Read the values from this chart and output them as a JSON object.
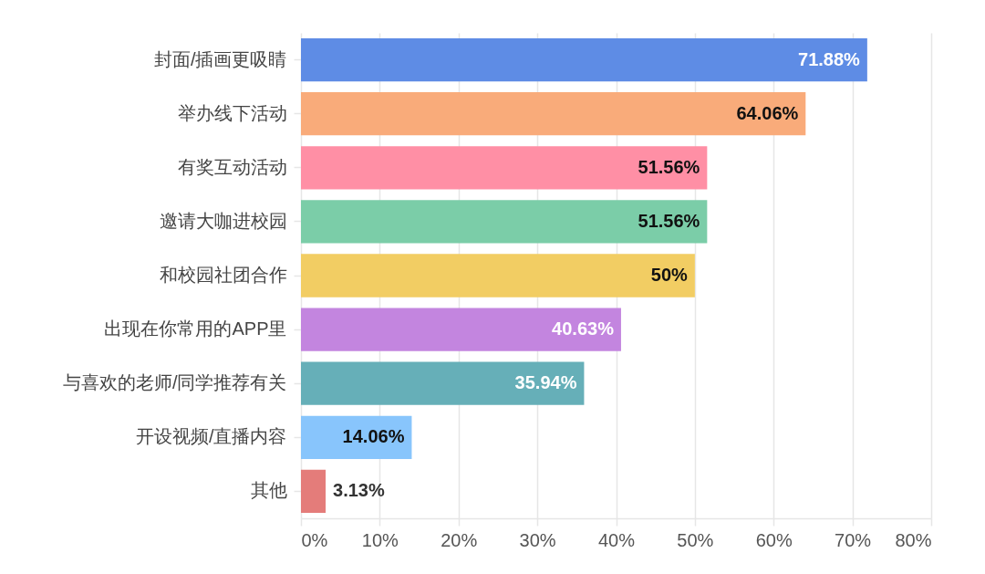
{
  "chart_data": {
    "type": "bar",
    "orientation": "horizontal",
    "categories": [
      "封面/插画更吸睛",
      "举办线下活动",
      "有奖互动活动",
      "邀请大咖进校园",
      "和校园社团合作",
      "出现在你常用的APP里",
      "与喜欢的老师/同学推荐有关",
      "开设视频/直播内容",
      "其他"
    ],
    "values": [
      71.88,
      64.06,
      51.56,
      51.56,
      50,
      40.63,
      35.94,
      14.06,
      3.13
    ],
    "value_labels": [
      "71.88%",
      "64.06%",
      "51.56%",
      "51.56%",
      "50%",
      "40.63%",
      "35.94%",
      "14.06%",
      "3.13%"
    ],
    "colors": [
      "#5e8ce5",
      "#f9ab7a",
      "#ff8fa5",
      "#7bcda8",
      "#f2cd63",
      "#c385df",
      "#66afb8",
      "#88c5fc",
      "#e47c7a"
    ],
    "xlim": [
      0,
      80
    ],
    "xticks": [
      {
        "value": 0,
        "label": "0%"
      },
      {
        "value": 10,
        "label": "10%"
      },
      {
        "value": 20,
        "label": "20%"
      },
      {
        "value": 30,
        "label": "30%"
      },
      {
        "value": 40,
        "label": "40%"
      },
      {
        "value": 50,
        "label": "50%"
      },
      {
        "value": 60,
        "label": "60%"
      },
      {
        "value": 70,
        "label": "70%"
      },
      {
        "value": 80,
        "label": "80%"
      }
    ],
    "grid": "x"
  }
}
